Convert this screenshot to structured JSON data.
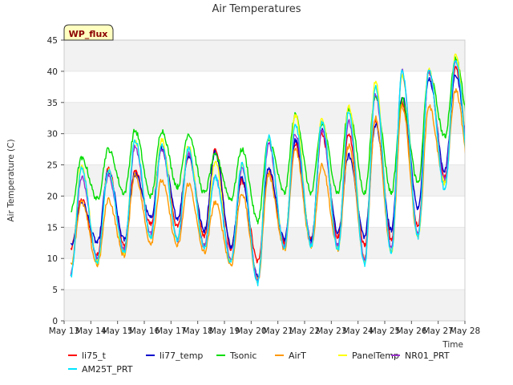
{
  "chart_data": {
    "type": "line",
    "title": "Air Temperatures",
    "xlabel": "Time",
    "ylabel": "Air Temperature (C)",
    "badge": "WP_flux",
    "x_ticks": [
      "May 13",
      "May 14",
      "May 15",
      "May 16",
      "May 17",
      "May 18",
      "May 19",
      "May 20",
      "May 21",
      "May 22",
      "May 23",
      "May 24",
      "May 25",
      "May 26",
      "May 27",
      "May 28"
    ],
    "y_ticks": [
      0,
      5,
      10,
      15,
      20,
      25,
      30,
      35,
      40,
      45
    ],
    "xlim": [
      13.0,
      28.0
    ],
    "ylim": [
      0,
      45
    ],
    "grid": "horizontal bands",
    "legend_position": "bottom",
    "days": [
      13.2,
      14.2,
      15.2,
      16.2,
      17.2,
      18.2,
      19.2,
      20.2,
      21.2,
      22.2,
      23.2,
      24.2,
      25.2,
      26.2,
      27.2
    ],
    "series": [
      {
        "name": "li75_t",
        "color": "#ff0000",
        "highs": [
          19.5,
          24.5,
          24.0,
          28.0,
          26.5,
          27.5,
          22.5,
          24.0,
          28.5,
          30.0,
          30.0,
          32.0,
          35.0,
          40.0,
          40.5
        ],
        "lows": [
          11.5,
          10.5,
          12.0,
          15.5,
          15.0,
          13.5,
          11.5,
          9.5,
          12.5,
          13.0,
          13.5,
          12.0,
          13.0,
          15.0,
          23.0
        ]
      },
      {
        "name": "li77_temp",
        "color": "#0000cc",
        "highs": [
          19.0,
          24.0,
          23.5,
          27.5,
          26.5,
          27.0,
          23.0,
          24.5,
          29.0,
          30.5,
          26.5,
          31.5,
          36.0,
          39.0,
          39.5
        ],
        "lows": [
          12.0,
          12.5,
          13.0,
          16.5,
          16.5,
          14.5,
          12.0,
          7.0,
          13.0,
          13.0,
          14.0,
          13.5,
          14.5,
          18.0,
          24.0
        ]
      },
      {
        "name": "Tsonic",
        "color": "#00dd00",
        "highs": [
          26.0,
          27.5,
          30.5,
          30.5,
          30.0,
          26.5,
          27.5,
          29.0,
          33.0,
          31.5,
          34.0,
          36.0,
          35.5,
          40.0,
          42.0
        ],
        "lows": [
          17.5,
          19.5,
          20.5,
          20.0,
          21.5,
          20.5,
          19.5,
          16.0,
          20.5,
          20.5,
          20.5,
          20.5,
          20.5,
          22.0,
          29.5
        ]
      },
      {
        "name": "AirT",
        "color": "#ff9900",
        "highs": [
          19.0,
          19.5,
          23.5,
          22.5,
          22.0,
          19.0,
          20.5,
          23.5,
          27.5,
          25.0,
          28.0,
          32.5,
          34.5,
          34.5,
          37.0
        ],
        "lows": [
          9.0,
          9.0,
          10.5,
          12.5,
          12.0,
          11.0,
          9.0,
          6.5,
          11.5,
          12.0,
          11.5,
          10.0,
          11.0,
          13.5,
          22.0
        ]
      },
      {
        "name": "PanelTemp",
        "color": "#ffff00",
        "highs": [
          25.0,
          24.0,
          29.0,
          29.0,
          28.0,
          25.5,
          25.0,
          29.5,
          33.0,
          32.5,
          34.5,
          38.5,
          39.5,
          40.5,
          42.5
        ],
        "lows": [
          7.5,
          9.5,
          11.0,
          13.5,
          13.0,
          12.0,
          9.5,
          6.5,
          11.5,
          12.0,
          11.5,
          9.5,
          11.0,
          13.5,
          22.0
        ]
      },
      {
        "name": "NR01_PRT",
        "color": "#9933cc",
        "highs": [
          23.0,
          23.5,
          28.0,
          27.5,
          27.0,
          23.0,
          24.5,
          28.5,
          30.0,
          30.5,
          32.0,
          36.5,
          40.0,
          40.0,
          41.5
        ],
        "lows": [
          7.5,
          10.0,
          11.5,
          14.0,
          13.0,
          12.0,
          10.0,
          6.5,
          12.0,
          12.5,
          12.0,
          10.0,
          11.5,
          14.0,
          22.5
        ]
      },
      {
        "name": "AM25T_PRT",
        "color": "#00e5ff",
        "highs": [
          24.5,
          24.0,
          29.0,
          28.0,
          27.5,
          23.0,
          25.0,
          29.5,
          31.5,
          32.0,
          33.5,
          37.5,
          40.0,
          40.5,
          42.0
        ],
        "lows": [
          7.0,
          9.5,
          11.0,
          13.5,
          13.0,
          11.5,
          9.5,
          6.0,
          11.5,
          12.0,
          11.5,
          9.0,
          11.0,
          13.5,
          21.0
        ]
      }
    ]
  }
}
